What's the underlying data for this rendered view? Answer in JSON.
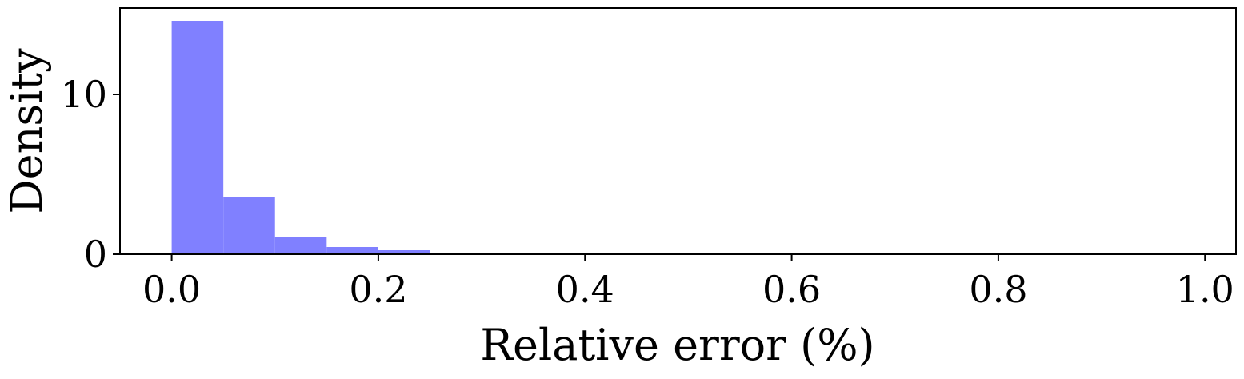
{
  "chart_data": {
    "type": "bar",
    "title": "",
    "xlabel": "Relative error (%)",
    "ylabel": "Density",
    "xlim": [
      -0.05,
      1.03
    ],
    "ylim": [
      0,
      15.4
    ],
    "grid": false,
    "bar_color": "#8080ff",
    "x_ticks": [
      {
        "value": 0.0,
        "label": "0.0"
      },
      {
        "value": 0.2,
        "label": "0.2"
      },
      {
        "value": 0.4,
        "label": "0.4"
      },
      {
        "value": 0.6,
        "label": "0.6"
      },
      {
        "value": 0.8,
        "label": "0.8"
      },
      {
        "value": 1.0,
        "label": "1.0"
      }
    ],
    "y_ticks": [
      {
        "value": 0,
        "label": "0"
      },
      {
        "value": 10,
        "label": "10"
      }
    ],
    "bins": [
      {
        "start": 0.0,
        "end": 0.05,
        "density": 14.6
      },
      {
        "start": 0.05,
        "end": 0.1,
        "density": 3.6
      },
      {
        "start": 0.1,
        "end": 0.15,
        "density": 1.1
      },
      {
        "start": 0.15,
        "end": 0.2,
        "density": 0.45
      },
      {
        "start": 0.2,
        "end": 0.25,
        "density": 0.25
      },
      {
        "start": 0.25,
        "end": 0.3,
        "density": 0.08
      },
      {
        "start": 0.3,
        "end": 0.35,
        "density": 0.05
      }
    ]
  }
}
